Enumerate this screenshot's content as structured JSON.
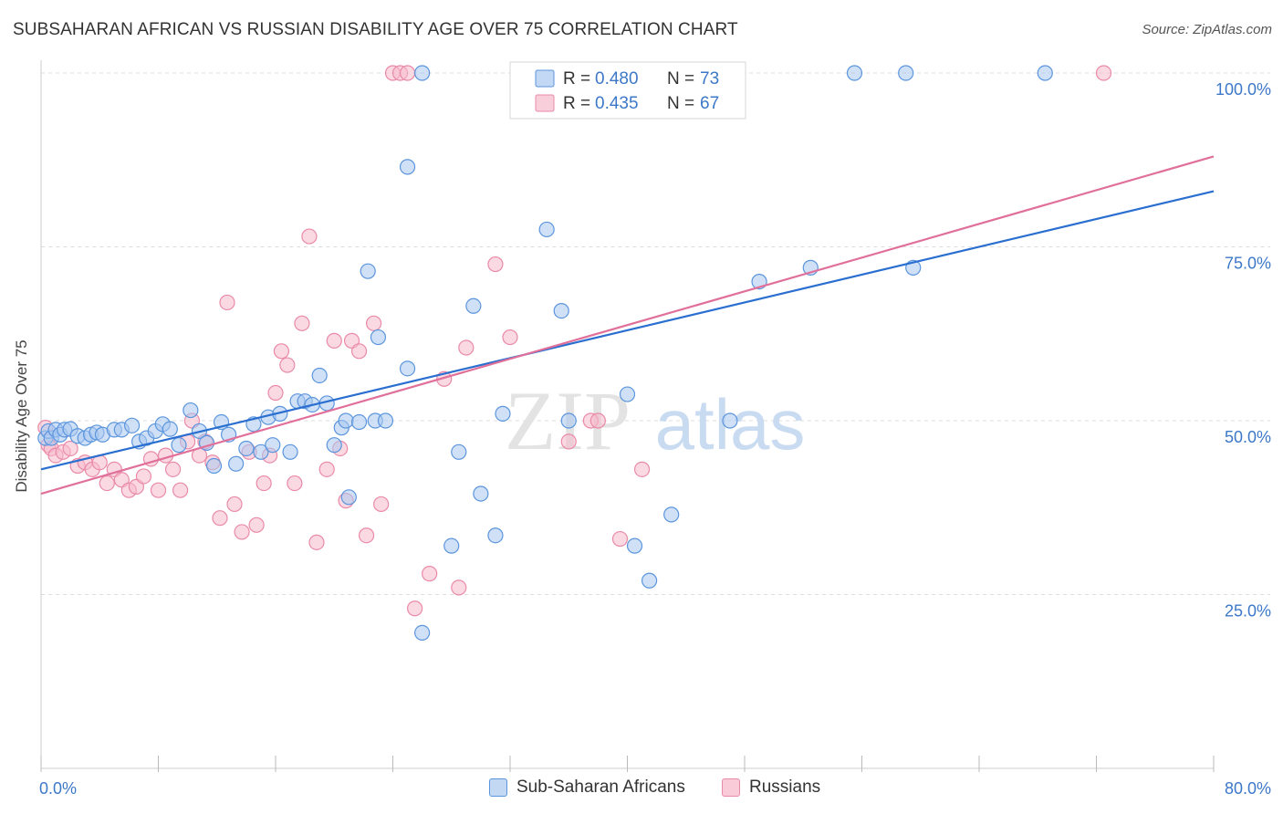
{
  "title": "SUBSAHARAN AFRICAN VS RUSSIAN DISABILITY AGE OVER 75 CORRELATION CHART",
  "source": "Source: ZipAtlas.com",
  "watermark": {
    "zip": "ZIP",
    "atlas": "atlas"
  },
  "colors": {
    "blue_fill": "#a9c8f0",
    "blue_stroke": "#5b95dd",
    "blue_line": "#2a6fd0",
    "pink_fill": "#f7b9cc",
    "pink_stroke": "#e98aa8",
    "pink_line": "#e0709a",
    "tick_label": "#3d78c8",
    "grid": "#dddddd"
  },
  "chart_data": {
    "type": "scatter",
    "title": "SUBSAHARAN AFRICAN VS RUSSIAN DISABILITY AGE OVER 75 CORRELATION CHART",
    "xlabel": "",
    "ylabel": "Disability Age Over 75",
    "xlim": [
      0,
      80
    ],
    "ylim": [
      0,
      100
    ],
    "x_tick_labels": [
      "0.0%",
      "80.0%"
    ],
    "y_tick_labels": [
      {
        "value": 25,
        "label": "25.0%"
      },
      {
        "value": 50,
        "label": "50.0%"
      },
      {
        "value": 75,
        "label": "75.0%"
      },
      {
        "value": 100,
        "label": "100.0%"
      }
    ],
    "grid": "horizontal dashed",
    "legend": [
      {
        "name": "Sub-Saharan Africans",
        "r_label": "R =",
        "r": "0.480",
        "n_label": "N =",
        "n": "73"
      },
      {
        "name": "Russians",
        "r_label": "R =",
        "r": "0.435",
        "n_label": "N =",
        "n": "67"
      }
    ],
    "series": [
      {
        "name": "Sub-Saharan Africans",
        "trend": {
          "x0": 0,
          "y0": 43,
          "x1": 80,
          "y1": 83
        },
        "points": [
          [
            0.3,
            47.5
          ],
          [
            0.5,
            48.5
          ],
          [
            0.7,
            47.5
          ],
          [
            1.0,
            48.7
          ],
          [
            1.3,
            48.0
          ],
          [
            1.6,
            48.7
          ],
          [
            2.0,
            48.8
          ],
          [
            2.5,
            47.8
          ],
          [
            3.0,
            47.5
          ],
          [
            3.4,
            48.0
          ],
          [
            3.8,
            48.3
          ],
          [
            4.2,
            48.0
          ],
          [
            5.0,
            48.7
          ],
          [
            5.5,
            48.7
          ],
          [
            6.2,
            49.3
          ],
          [
            6.7,
            47.0
          ],
          [
            7.2,
            47.5
          ],
          [
            7.8,
            48.5
          ],
          [
            8.3,
            49.5
          ],
          [
            8.8,
            48.8
          ],
          [
            9.4,
            46.5
          ],
          [
            10.2,
            51.5
          ],
          [
            10.8,
            48.5
          ],
          [
            11.3,
            46.8
          ],
          [
            11.8,
            43.5
          ],
          [
            12.3,
            49.8
          ],
          [
            12.8,
            48.0
          ],
          [
            13.3,
            43.8
          ],
          [
            14.0,
            46.0
          ],
          [
            14.5,
            49.5
          ],
          [
            15.0,
            45.5
          ],
          [
            15.5,
            50.5
          ],
          [
            15.8,
            46.5
          ],
          [
            16.3,
            51.0
          ],
          [
            17.0,
            45.5
          ],
          [
            17.5,
            52.8
          ],
          [
            18.0,
            52.8
          ],
          [
            18.5,
            52.3
          ],
          [
            19.0,
            56.5
          ],
          [
            19.5,
            52.5
          ],
          [
            20.0,
            46.5
          ],
          [
            20.5,
            49.0
          ],
          [
            20.8,
            50.0
          ],
          [
            21.0,
            39.0
          ],
          [
            21.7,
            49.8
          ],
          [
            22.3,
            71.5
          ],
          [
            22.8,
            50.0
          ],
          [
            23.0,
            62.0
          ],
          [
            23.5,
            50.0
          ],
          [
            25.0,
            86.5
          ],
          [
            25.0,
            57.5
          ],
          [
            26.0,
            100
          ],
          [
            26.0,
            19.5
          ],
          [
            28.0,
            32.0
          ],
          [
            28.5,
            45.5
          ],
          [
            29.5,
            66.5
          ],
          [
            30.0,
            39.5
          ],
          [
            31.0,
            33.5
          ],
          [
            31.5,
            51.0
          ],
          [
            33.0,
            100
          ],
          [
            34.5,
            77.5
          ],
          [
            35.5,
            65.8
          ],
          [
            36.0,
            50.0
          ],
          [
            40.0,
            53.8
          ],
          [
            40.5,
            32.0
          ],
          [
            41.5,
            27.0
          ],
          [
            43.0,
            36.5
          ],
          [
            47.0,
            50.0
          ],
          [
            49.0,
            70.0
          ],
          [
            52.5,
            72.0
          ],
          [
            55.5,
            100
          ],
          [
            59.0,
            100
          ],
          [
            59.5,
            72.0
          ],
          [
            68.5,
            100
          ]
        ]
      },
      {
        "name": "Russians",
        "trend": {
          "x0": 0,
          "y0": 39.5,
          "x1": 80,
          "y1": 88
        },
        "points": [
          [
            0.3,
            49.0
          ],
          [
            0.5,
            46.5
          ],
          [
            0.7,
            46.0
          ],
          [
            1.0,
            45.0
          ],
          [
            1.5,
            45.5
          ],
          [
            2.0,
            46.0
          ],
          [
            2.5,
            43.5
          ],
          [
            3.0,
            44.0
          ],
          [
            3.5,
            43.0
          ],
          [
            4.0,
            44.0
          ],
          [
            4.5,
            41.0
          ],
          [
            5.0,
            43.0
          ],
          [
            5.5,
            41.5
          ],
          [
            6.0,
            40.0
          ],
          [
            6.5,
            40.5
          ],
          [
            7.0,
            42.0
          ],
          [
            7.5,
            44.5
          ],
          [
            8.0,
            40.0
          ],
          [
            8.5,
            45.0
          ],
          [
            9.0,
            43.0
          ],
          [
            9.5,
            40.0
          ],
          [
            10.0,
            47.0
          ],
          [
            10.3,
            50.0
          ],
          [
            10.8,
            45.0
          ],
          [
            11.2,
            47.0
          ],
          [
            11.7,
            44.0
          ],
          [
            12.2,
            36.0
          ],
          [
            12.7,
            67.0
          ],
          [
            13.2,
            38.0
          ],
          [
            13.7,
            34.0
          ],
          [
            14.2,
            45.5
          ],
          [
            14.7,
            35.0
          ],
          [
            15.2,
            41.0
          ],
          [
            15.6,
            45.0
          ],
          [
            16.0,
            54.0
          ],
          [
            16.4,
            60.0
          ],
          [
            16.8,
            58.0
          ],
          [
            17.3,
            41.0
          ],
          [
            17.8,
            64.0
          ],
          [
            18.3,
            76.5
          ],
          [
            18.8,
            32.5
          ],
          [
            19.5,
            43.0
          ],
          [
            20.0,
            61.5
          ],
          [
            20.4,
            46.0
          ],
          [
            20.8,
            38.5
          ],
          [
            21.2,
            61.5
          ],
          [
            21.7,
            60.0
          ],
          [
            22.2,
            33.5
          ],
          [
            22.7,
            64.0
          ],
          [
            23.2,
            38.0
          ],
          [
            24.0,
            100
          ],
          [
            24.5,
            100
          ],
          [
            25.0,
            100
          ],
          [
            25.5,
            23.0
          ],
          [
            26.5,
            28.0
          ],
          [
            27.5,
            56.0
          ],
          [
            28.5,
            26.0
          ],
          [
            29.0,
            60.5
          ],
          [
            31.0,
            72.5
          ],
          [
            32.0,
            62.0
          ],
          [
            34.0,
            100
          ],
          [
            36.0,
            47.0
          ],
          [
            37.5,
            50.0
          ],
          [
            38.0,
            50.0
          ],
          [
            39.5,
            33.0
          ],
          [
            41.0,
            43.0
          ],
          [
            72.5,
            100
          ]
        ]
      }
    ]
  }
}
